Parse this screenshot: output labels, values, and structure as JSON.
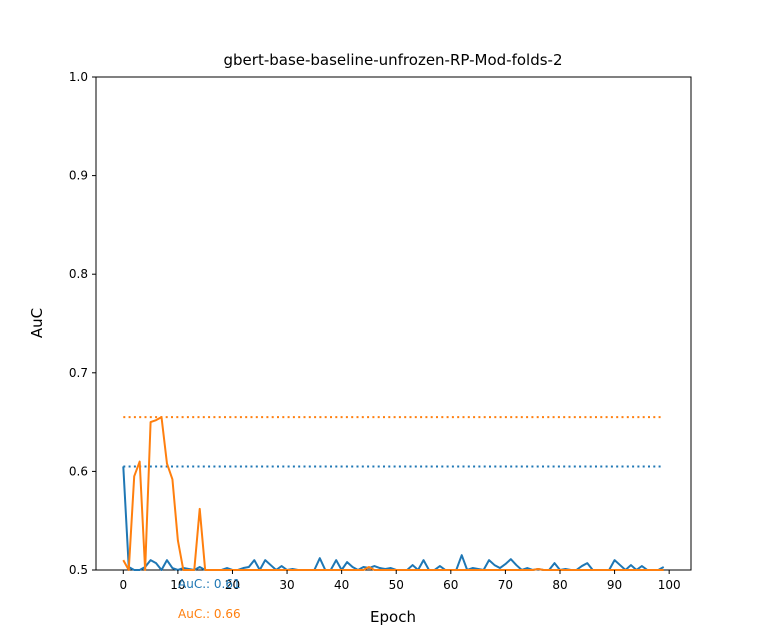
{
  "chart_data": {
    "type": "line",
    "title": "gbert-base-baseline-unfrozen-RP-Mod-folds-2",
    "xlabel": "Epoch",
    "ylabel": "AuC",
    "xlim": [
      -5,
      104
    ],
    "ylim": [
      0.5,
      1.0
    ],
    "xticks": [
      0,
      10,
      20,
      30,
      40,
      50,
      60,
      70,
      80,
      90,
      100
    ],
    "yticks": [
      0.5,
      0.6,
      0.7,
      0.8,
      0.9,
      1.0
    ],
    "ytick_labels": [
      "0.5",
      "0.6",
      "0.7",
      "0.8",
      "0.9",
      "1.0"
    ],
    "grid": false,
    "colors": {
      "series1": "#1f77b4",
      "series2": "#ff7f0e"
    },
    "series": [
      {
        "x": [
          0,
          1,
          2,
          3,
          4,
          5,
          6,
          7,
          8,
          9,
          10,
          11,
          12,
          13,
          14,
          15,
          16,
          17,
          18,
          19,
          20,
          21,
          22,
          23,
          24,
          25,
          26,
          27,
          28,
          29,
          30,
          31,
          32,
          33,
          34,
          35,
          36,
          37,
          38,
          39,
          40,
          41,
          42,
          43,
          44,
          45,
          46,
          47,
          48,
          49,
          50,
          51,
          52,
          53,
          54,
          55,
          56,
          57,
          58,
          59,
          60,
          61,
          62,
          63,
          64,
          65,
          66,
          67,
          68,
          69,
          70,
          71,
          72,
          73,
          74,
          75,
          76,
          77,
          78,
          79,
          80,
          81,
          82,
          83,
          84,
          85,
          86,
          87,
          88,
          89,
          90,
          91,
          92,
          93,
          94,
          95,
          96,
          97,
          98,
          99
        ],
        "y": [
          0.605,
          0.503,
          0.5,
          0.5,
          0.503,
          0.51,
          0.507,
          0.5,
          0.51,
          0.502,
          0.5,
          0.502,
          0.501,
          0.5,
          0.503,
          0.5,
          0.5,
          0.5,
          0.5,
          0.502,
          0.5,
          0.5,
          0.502,
          0.503,
          0.51,
          0.5,
          0.51,
          0.505,
          0.5,
          0.504,
          0.5,
          0.501,
          0.5,
          0.5,
          0.5,
          0.5,
          0.512,
          0.5,
          0.5,
          0.51,
          0.5,
          0.508,
          0.503,
          0.5,
          0.503,
          0.502,
          0.504,
          0.502,
          0.501,
          0.502,
          0.5,
          0.5,
          0.5,
          0.505,
          0.5,
          0.51,
          0.5,
          0.5,
          0.504,
          0.5,
          0.5,
          0.5,
          0.515,
          0.5,
          0.502,
          0.501,
          0.5,
          0.51,
          0.505,
          0.502,
          0.506,
          0.511,
          0.505,
          0.5,
          0.502,
          0.5,
          0.501,
          0.5,
          0.5,
          0.507,
          0.5,
          0.501,
          0.5,
          0.5,
          0.504,
          0.507,
          0.5,
          0.5,
          0.5,
          0.5,
          0.51,
          0.505,
          0.5,
          0.505,
          0.5,
          0.504,
          0.5,
          0.5,
          0.5,
          0.503
        ],
        "best": 0.605,
        "note": "AuC.: 0.61"
      },
      {
        "x": [
          0,
          1,
          2,
          3,
          4,
          5,
          6,
          7,
          8,
          9,
          10,
          11,
          12,
          13,
          14,
          15,
          16,
          17,
          18,
          19,
          20,
          21,
          22,
          23,
          24,
          25,
          26,
          27,
          28,
          29,
          30,
          31,
          32,
          33,
          34,
          35,
          36,
          37,
          38,
          39,
          40,
          41,
          42,
          43,
          44,
          45,
          46,
          47,
          48,
          49,
          50,
          51,
          52,
          53,
          54,
          55,
          56,
          57,
          58,
          59,
          60,
          61,
          62,
          63,
          64,
          65,
          66,
          67,
          68,
          69,
          70,
          71,
          72,
          73,
          74,
          75,
          76,
          77,
          78,
          79,
          80,
          81,
          82,
          83,
          84,
          85,
          86,
          87,
          88,
          89,
          90,
          91,
          92,
          93,
          94,
          95,
          96,
          97,
          98,
          99
        ],
        "y": [
          0.51,
          0.5,
          0.595,
          0.61,
          0.5,
          0.65,
          0.652,
          0.655,
          0.608,
          0.592,
          0.53,
          0.5,
          0.5,
          0.5,
          0.562,
          0.5,
          0.5,
          0.5,
          0.5,
          0.5,
          0.5,
          0.5,
          0.5,
          0.5,
          0.5,
          0.5,
          0.5,
          0.5,
          0.5,
          0.5,
          0.5,
          0.5,
          0.5,
          0.5,
          0.5,
          0.5,
          0.5,
          0.5,
          0.5,
          0.5,
          0.5,
          0.5,
          0.5,
          0.5,
          0.5,
          0.503,
          0.5,
          0.5,
          0.5,
          0.5,
          0.5,
          0.5,
          0.5,
          0.5,
          0.5,
          0.5,
          0.5,
          0.5,
          0.5,
          0.5,
          0.5,
          0.5,
          0.5,
          0.5,
          0.5,
          0.5,
          0.5,
          0.5,
          0.5,
          0.5,
          0.5,
          0.5,
          0.5,
          0.5,
          0.5,
          0.5,
          0.501,
          0.5,
          0.5,
          0.5,
          0.5,
          0.5,
          0.5,
          0.5,
          0.5,
          0.5,
          0.5,
          0.5,
          0.5,
          0.5,
          0.5,
          0.5,
          0.5,
          0.5,
          0.5,
          0.5,
          0.5,
          0.5,
          0.5,
          0.5
        ],
        "best": 0.655,
        "note": "AuC.: 0.66"
      }
    ]
  }
}
